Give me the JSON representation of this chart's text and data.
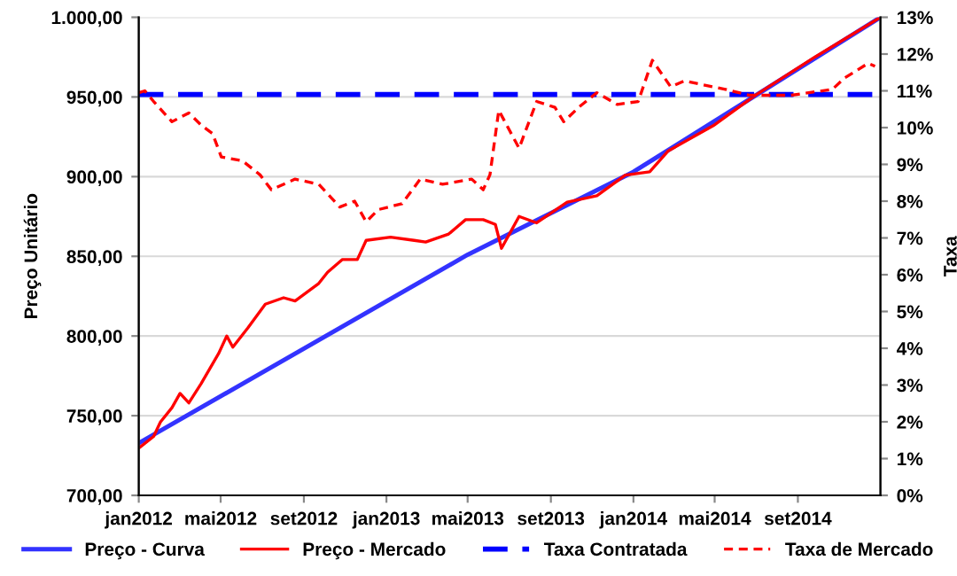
{
  "chart_data": {
    "type": "line",
    "ylabel": "Preço Unitário",
    "y2label": "Taxa",
    "xlim": [
      "2012-01-01",
      "2015-01-01"
    ],
    "xticks": [
      {
        "value": "2012-01-01",
        "label": "jan2012"
      },
      {
        "value": "2012-05-01",
        "label": "mai2012"
      },
      {
        "value": "2012-09-01",
        "label": "set2012"
      },
      {
        "value": "2013-01-01",
        "label": "jan2013"
      },
      {
        "value": "2013-05-01",
        "label": "mai2013"
      },
      {
        "value": "2013-09-01",
        "label": "set2013"
      },
      {
        "value": "2014-01-01",
        "label": "jan2014"
      },
      {
        "value": "2014-05-01",
        "label": "mai2014"
      },
      {
        "value": "2014-09-01",
        "label": "set2014"
      }
    ],
    "ylim": [
      700,
      1000
    ],
    "yticks": [
      {
        "value": 700,
        "label": "700,00"
      },
      {
        "value": 750,
        "label": "750,00"
      },
      {
        "value": 800,
        "label": "800,00"
      },
      {
        "value": 850,
        "label": "850,00"
      },
      {
        "value": 900,
        "label": "900,00"
      },
      {
        "value": 950,
        "label": "950,00"
      },
      {
        "value": 1000,
        "label": "1.000,00"
      }
    ],
    "y2lim": [
      0,
      13
    ],
    "y2ticks": [
      {
        "value": 0,
        "label": "0%"
      },
      {
        "value": 1,
        "label": "1%"
      },
      {
        "value": 2,
        "label": "2%"
      },
      {
        "value": 3,
        "label": "3%"
      },
      {
        "value": 4,
        "label": "4%"
      },
      {
        "value": 5,
        "label": "5%"
      },
      {
        "value": 6,
        "label": "6%"
      },
      {
        "value": 7,
        "label": "7%"
      },
      {
        "value": 8,
        "label": "8%"
      },
      {
        "value": 9,
        "label": "9%"
      },
      {
        "value": 10,
        "label": "10%"
      },
      {
        "value": 11,
        "label": "11%"
      },
      {
        "value": 12,
        "label": "12%"
      },
      {
        "value": 13,
        "label": "13%"
      }
    ],
    "grid": "y",
    "legend": "bottom",
    "marker": "none",
    "series": [
      {
        "name": "Preço - Curva",
        "color": "#3333ff",
        "line_style": "solid",
        "x": [
          "2012-01-02",
          "2013-05-01",
          "2014-01-01",
          "2015-01-01"
        ],
        "values": [
          733,
          851,
          903,
          1000
        ]
      },
      {
        "name": "Preço - Mercado",
        "color": "#ff0000",
        "line_style": "solid",
        "x": [
          "2012-01-02",
          "2012-01-23",
          "2012-02-02",
          "2012-02-19",
          "2012-03-02",
          "2012-03-15",
          "2012-04-02",
          "2012-04-28",
          "2012-05-10",
          "2012-05-19",
          "2012-06-10",
          "2012-07-06",
          "2012-08-02",
          "2012-08-19",
          "2012-09-23",
          "2012-10-06",
          "2012-10-28",
          "2012-11-19",
          "2012-12-02",
          "2013-01-07",
          "2013-02-11",
          "2013-02-28",
          "2013-04-03",
          "2013-04-28",
          "2013-05-24",
          "2013-06-11",
          "2013-06-20",
          "2013-07-16",
          "2013-08-11",
          "2013-09-25",
          "2013-11-08",
          "2013-12-20",
          "2014-01-25",
          "2014-02-21",
          "2014-04-29",
          "2014-06-30",
          "2014-09-26",
          "2015-01-01"
        ],
        "values": [
          730,
          737,
          746,
          755,
          764,
          758,
          770,
          789,
          800,
          793,
          805,
          820,
          824,
          822,
          833,
          840,
          848,
          848,
          860,
          862,
          860,
          859,
          864,
          873,
          873,
          870,
          855,
          875,
          871,
          884,
          888,
          901,
          903,
          916,
          932,
          951,
          975,
          1000
        ]
      },
      {
        "name": "Taxa Contratada",
        "color": "#0000ff",
        "line_style": "dashed",
        "axis": "y2",
        "x": [
          "2012-01-01",
          "2015-01-01"
        ],
        "values": [
          10.9,
          10.9
        ]
      },
      {
        "name": "Taxa de Mercado",
        "color": "#ff0000",
        "line_style": "dotted",
        "axis": "y2",
        "x": [
          "2012-01-01",
          "2012-01-10",
          "2012-01-23",
          "2012-02-19",
          "2012-03-15",
          "2012-04-02",
          "2012-04-19",
          "2012-05-02",
          "2012-06-02",
          "2012-06-28",
          "2012-07-15",
          "2012-08-19",
          "2012-09-23",
          "2012-10-24",
          "2012-11-15",
          "2012-12-02",
          "2012-12-20",
          "2013-01-24",
          "2013-02-20",
          "2013-03-25",
          "2013-05-07",
          "2013-05-24",
          "2013-06-03",
          "2013-06-16",
          "2013-07-16",
          "2013-08-11",
          "2013-09-07",
          "2013-09-20",
          "2013-10-12",
          "2013-11-08",
          "2013-12-08",
          "2014-01-08",
          "2014-01-29",
          "2014-02-25",
          "2014-03-17",
          "2014-05-17",
          "2014-06-21",
          "2014-08-22",
          "2014-10-22",
          "2014-11-09",
          "2014-12-14",
          "2014-12-24"
        ],
        "values": [
          10.95,
          11.0,
          10.71,
          10.16,
          10.4,
          10.07,
          9.84,
          9.2,
          9.1,
          8.72,
          8.31,
          8.6,
          8.46,
          7.84,
          8.0,
          7.44,
          7.77,
          7.93,
          8.6,
          8.46,
          8.6,
          8.31,
          8.72,
          10.47,
          9.44,
          10.71,
          10.55,
          10.16,
          10.55,
          10.95,
          10.63,
          10.71,
          11.83,
          11.11,
          11.27,
          11.04,
          10.88,
          10.88,
          11.04,
          11.35,
          11.75,
          11.67
        ]
      }
    ]
  }
}
